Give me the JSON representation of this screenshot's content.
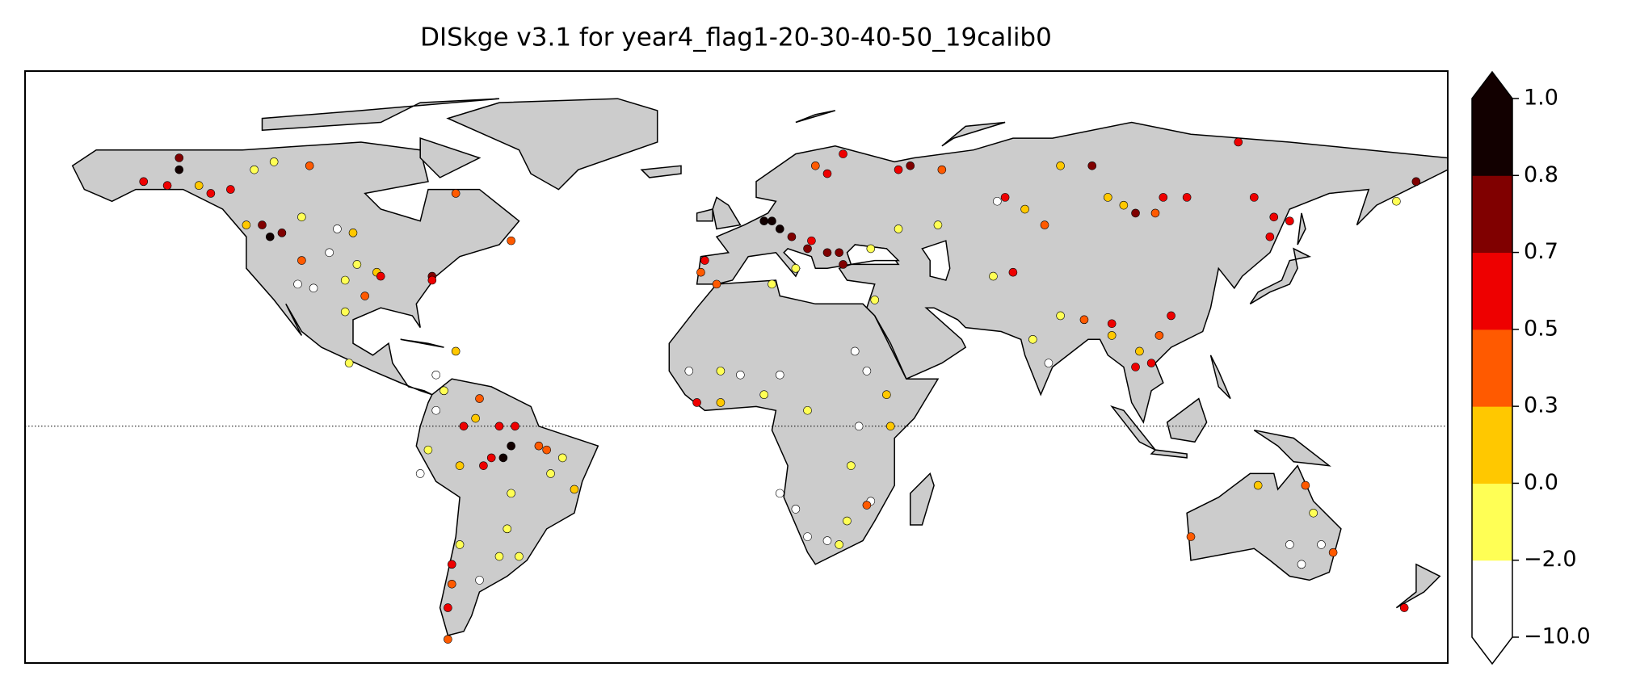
{
  "chart_data": {
    "type": "map-scatter",
    "title": "DISkge v3.1 for year4_flag1-20-30-40-50_19calib0",
    "colorbar": {
      "ticks": [
        {
          "value": -10,
          "label": "−10.0"
        },
        {
          "value": -2,
          "label": "−2.0"
        },
        {
          "value": 0,
          "label": "0.0"
        },
        0.3,
        0.5,
        0.7,
        0.8,
        {
          "value": 1,
          "label": "1.0"
        }
      ],
      "colors": [
        "#ffffff",
        "#ffff55",
        "#ffc800",
        "#ff5a00",
        "#ee0000",
        "#800000",
        "#120000"
      ]
    },
    "stations": {
      "lon": [
        -141,
        -141,
        -150,
        -144,
        -136,
        -133,
        -128,
        -122,
        -117,
        -108,
        -124,
        -120,
        -118,
        -115,
        -110,
        -101,
        -97,
        -110,
        -103,
        -111,
        -107,
        -99,
        -96,
        -91,
        -90,
        -94,
        -99,
        -77,
        -77,
        -71,
        -57,
        -98,
        -71,
        -76,
        -74,
        -65,
        -76,
        -66,
        -69,
        -60,
        -56,
        -57,
        -50,
        -48,
        -44,
        -64,
        -62,
        -59,
        -70,
        -78,
        -80,
        -57,
        -47,
        -41,
        -58,
        -60,
        -55,
        -65,
        -72,
        -72,
        -73,
        -73,
        -70,
        -8,
        -9,
        -5,
        7,
        9,
        11,
        14,
        18,
        23,
        26,
        27,
        19,
        15,
        9,
        23,
        27,
        20,
        41,
        44,
        52,
        34,
        41,
        51,
        35,
        68,
        66,
        73,
        78,
        82,
        90,
        94,
        98,
        101,
        108,
        114,
        106,
        127,
        131,
        136,
        135,
        140,
        172,
        167,
        70,
        65,
        82,
        75,
        79,
        88,
        95,
        101,
        105,
        102,
        107,
        95,
        110,
        30,
        33,
        1,
        -4,
        -12,
        -10,
        -4,
        7,
        18,
        11,
        38,
        31,
        39,
        29,
        34,
        33,
        18,
        23,
        26,
        15,
        28,
        11,
        132,
        144,
        146,
        115,
        140,
        143,
        148,
        151,
        169
      ],
      "lat": [
        68,
        65,
        62,
        61,
        61,
        59,
        60,
        65,
        67,
        66,
        51,
        51,
        48,
        49,
        53,
        50,
        49,
        42,
        44,
        36,
        35,
        37,
        41,
        39,
        38,
        33,
        29,
        38,
        37,
        59,
        47,
        16,
        19,
        13,
        9,
        7,
        4,
        2,
        0,
        0,
        0,
        -5,
        -5,
        -6,
        -8,
        -10,
        -8,
        -8,
        -10,
        -6,
        -12,
        -17,
        -12,
        -16,
        -26,
        -33,
        -33,
        -39,
        -35,
        -40,
        -46,
        -54,
        -30,
        42,
        39,
        36,
        52,
        52,
        50,
        48,
        45,
        44,
        44,
        41,
        47,
        40,
        36,
        64,
        69,
        66,
        65,
        66,
        65,
        45,
        50,
        51,
        32,
        58,
        57,
        55,
        51,
        66,
        66,
        58,
        56,
        54,
        58,
        58,
        54,
        72,
        58,
        53,
        48,
        52,
        62,
        57,
        39,
        38,
        28,
        22,
        16,
        27,
        23,
        15,
        16,
        19,
        23,
        26,
        28,
        19,
        14,
        13,
        14,
        14,
        6,
        6,
        8,
        4,
        13,
        8,
        0,
        0,
        -10,
        -19,
        -20,
        -28,
        -29,
        -30,
        -21,
        -24,
        -17,
        -15,
        -15,
        -22,
        -28,
        -30,
        -35,
        -30,
        -32,
        -46
      ],
      "values": [
        0.75,
        0.9,
        0.6,
        0.6,
        0.15,
        0.6,
        0.6,
        -0.8,
        -0.8,
        0.4,
        0.15,
        0.75,
        0.9,
        0.75,
        -0.8,
        -3,
        0.15,
        0.4,
        -3,
        -3,
        -3,
        -0.8,
        -0.8,
        0.15,
        0.6,
        0.4,
        -0.8,
        0.75,
        0.6,
        0.4,
        0.4,
        -0.8,
        0.15,
        -3,
        -0.8,
        0.4,
        -3,
        0.15,
        0.6,
        0.6,
        0.6,
        0.9,
        0.4,
        0.4,
        -0.8,
        0.6,
        0.6,
        0.9,
        0.15,
        -0.8,
        -3,
        -0.8,
        -0.8,
        0.15,
        -0.8,
        -0.8,
        -0.8,
        -3,
        0.6,
        0.4,
        0.6,
        0.4,
        -0.8,
        0.6,
        0.4,
        0.4,
        0.9,
        0.9,
        0.9,
        0.75,
        0.75,
        0.75,
        0.75,
        0.75,
        0.6,
        -0.8,
        -0.8,
        0.6,
        0.6,
        0.4,
        0.6,
        0.75,
        0.4,
        -0.8,
        -0.8,
        -0.8,
        -0.8,
        0.6,
        -3,
        0.15,
        0.4,
        0.15,
        0.75,
        0.15,
        0.15,
        0.75,
        0.6,
        0.6,
        0.4,
        0.6,
        0.6,
        0.6,
        0.6,
        0.6,
        0.75,
        -0.8,
        0.6,
        -0.8,
        -0.8,
        -0.8,
        -3,
        0.4,
        0.15,
        0.6,
        0.6,
        0.15,
        0.4,
        0.6,
        0.6,
        -3,
        -3,
        -3,
        -0.8,
        -3,
        0.6,
        0.15,
        -0.8,
        -0.8,
        -3,
        0.15,
        -3,
        0.15,
        -0.8,
        -3,
        0.4,
        -3,
        -3,
        -0.8,
        -3,
        -0.8,
        -3,
        0.15,
        0.4,
        -0.8,
        0.4,
        -3,
        -3,
        -3,
        0.4,
        0.6
      ]
    }
  }
}
